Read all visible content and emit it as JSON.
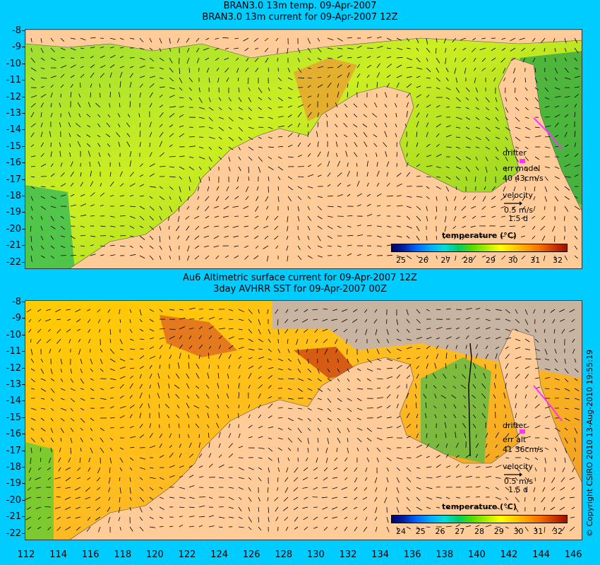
{
  "top_panel": {
    "title_line1": "BRAN3.0 13m temp. 09-Apr-2007",
    "title_line2": "BRAN3.0 13m current for 09-Apr-2007 12Z",
    "drifter": {
      "label": "drifter",
      "err_line": "err model",
      "values_line": "40 43cm/s",
      "velocity_label": "velocity",
      "velocity_scale": "0.5 m/s",
      "velocity_time": "1.5 d"
    },
    "legend_title": "temperature (°C)",
    "colorbar_ticks": [
      "25",
      "26",
      "27",
      "28",
      "29",
      "30",
      "31",
      "32"
    ]
  },
  "bottom_panel": {
    "title_line1": "Au6 Altimetric surface current for 09-Apr-2007 12Z",
    "title_line2": "3day AVHRR SST for 09-Apr-2007 00Z",
    "drifter": {
      "label": "drifter",
      "err_line": "err alt",
      "values_line": "41 36cm/s",
      "velocity_label": "velocity",
      "velocity_scale": "0.5 m/s",
      "velocity_time": "1.5 d"
    },
    "legend_title": "temperature (°C)",
    "colorbar_ticks": [
      "24",
      "25",
      "26",
      "27",
      "28",
      "29",
      "30",
      "31",
      "32"
    ]
  },
  "y_ticks": [
    "-8",
    "-9",
    "-10",
    "-11",
    "-12",
    "-13",
    "-14",
    "-15",
    "-16",
    "-17",
    "-18",
    "-19",
    "-20",
    "-21",
    "-22"
  ],
  "x_ticks": [
    "112",
    "114",
    "116",
    "118",
    "120",
    "122",
    "124",
    "126",
    "128",
    "130",
    "132",
    "134",
    "136",
    "138",
    "140",
    "142",
    "144",
    "146"
  ],
  "copyright": "© Copyright CSIRO 2010  13-Aug-2010 19:55:19",
  "colors": {
    "background": "#00ccff",
    "land": "#ffcc99",
    "masked": "#c8b4a0",
    "drifter": "#ff33ff",
    "arrow": "#000000",
    "contour": "#33cccc"
  }
}
